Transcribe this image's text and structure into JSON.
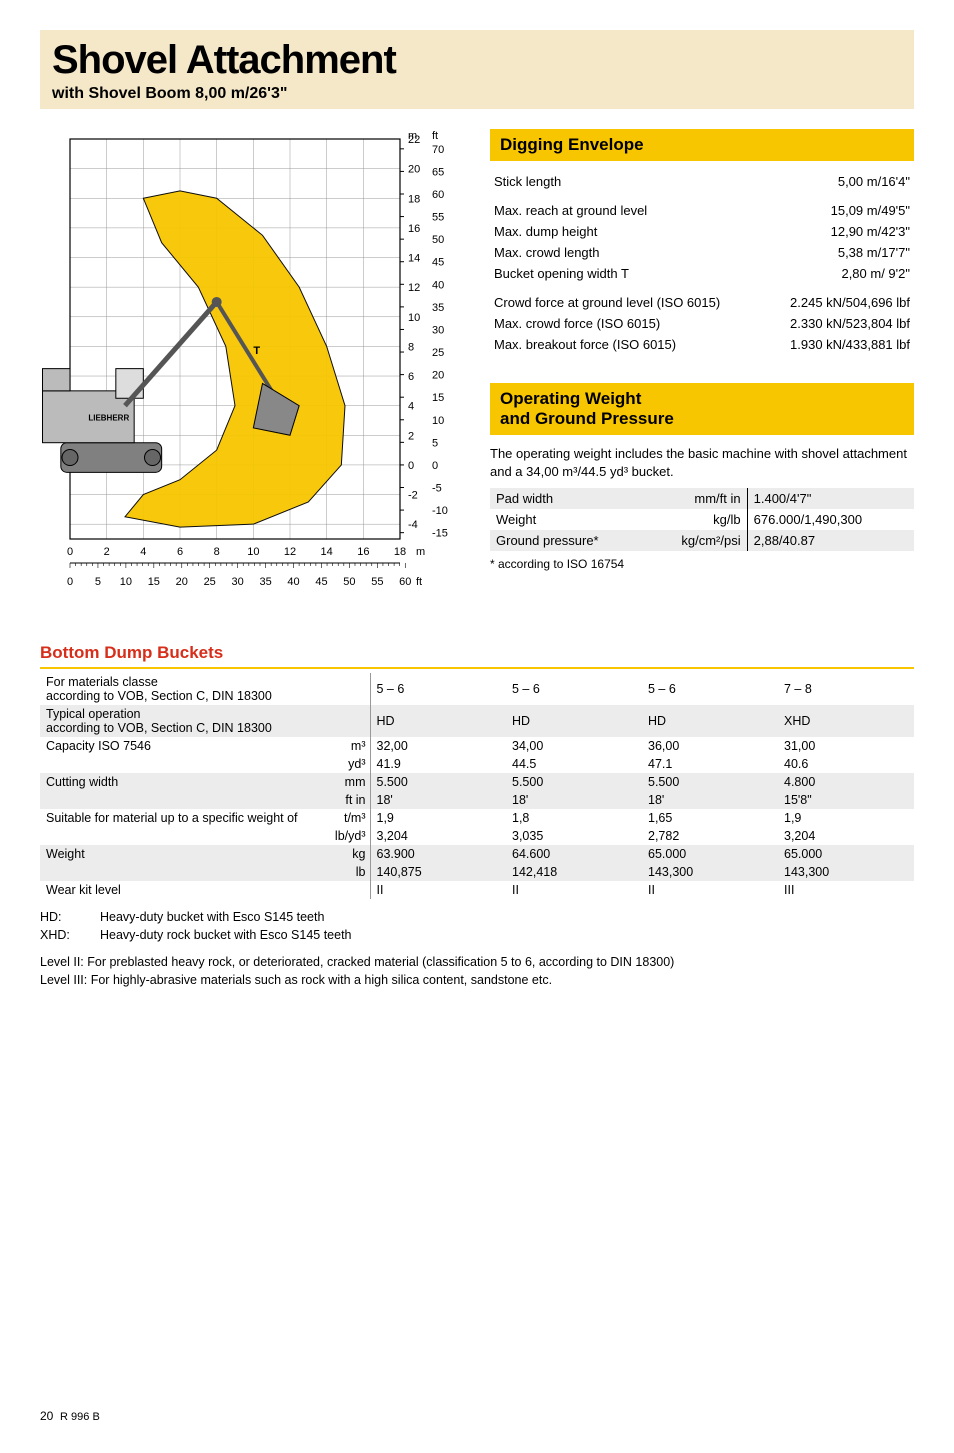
{
  "header": {
    "title": "Shovel Attachment",
    "subtitle": "with Shovel Boom 8,00 m/26'3\""
  },
  "digging": {
    "heading": "Digging Envelope",
    "rows": [
      {
        "label": "Stick length",
        "value": "5,00 m/16'4\""
      }
    ],
    "rows2": [
      {
        "label": "Max. reach at ground level",
        "value": "15,09 m/49'5\""
      },
      {
        "label": "Max. dump height",
        "value": "12,90 m/42'3\""
      },
      {
        "label": "Max. crowd length",
        "value": "5,38 m/17'7\""
      },
      {
        "label": "Bucket opening width T",
        "value": "2,80 m/  9'2\""
      }
    ],
    "rows3": [
      {
        "label": "Crowd force at ground level (ISO 6015)",
        "value": "2.245 kN/504,696 lbf"
      },
      {
        "label": "Max. crowd force (ISO 6015)",
        "value": "2.330 kN/523,804 lbf"
      },
      {
        "label": "Max. breakout force (ISO 6015)",
        "value": "1.930 kN/433,881 lbf"
      }
    ]
  },
  "opweight": {
    "heading": "Operating Weight\nand Ground Pressure",
    "desc": "The operating weight includes the basic machine with shovel attachment and a 34,00 m³/44.5 yd³ bucket.",
    "rows": [
      {
        "label": "Pad width",
        "unit": "mm/ft in",
        "value": "1.400/4'7\""
      },
      {
        "label": "Weight",
        "unit": "kg/lb",
        "value": "676.000/1,490,300"
      },
      {
        "label": "Ground pressure*",
        "unit": "kg/cm²/psi",
        "value": "2,88/40.87"
      }
    ],
    "footnote": "* according to ISO 16754"
  },
  "bdb": {
    "heading": "Bottom Dump Buckets",
    "rows": [
      {
        "shade": false,
        "label": "For materials classe\naccording to VOB, Section C, DIN 18300",
        "unit": "",
        "c": [
          "5 – 6",
          "5 – 6",
          "5 – 6",
          "7 – 8"
        ]
      },
      {
        "shade": true,
        "label": "Typical operation\naccording to VOB, Section C, DIN 18300",
        "unit": "",
        "c": [
          "HD",
          "HD",
          "HD",
          "XHD"
        ]
      },
      {
        "shade": false,
        "label": "Capacity ISO 7546",
        "unit": "m³",
        "c": [
          "32,00",
          "34,00",
          "36,00",
          "31,00"
        ]
      },
      {
        "shade": false,
        "label": "",
        "unit": "yd³",
        "c": [
          "41.9",
          "44.5",
          "47.1",
          "40.6"
        ]
      },
      {
        "shade": true,
        "label": "Cutting width",
        "unit": "mm",
        "c": [
          "5.500",
          "5.500",
          "5.500",
          "4.800"
        ]
      },
      {
        "shade": true,
        "label": "",
        "unit": "ft in",
        "c": [
          "18'",
          "18'",
          "18'",
          "15'8\""
        ]
      },
      {
        "shade": false,
        "label": "Suitable for material up to a specific weight of",
        "unit": "t/m³",
        "c": [
          "1,9",
          "1,8",
          "1,65",
          "1,9"
        ]
      },
      {
        "shade": false,
        "label": "",
        "unit": "lb/yd³",
        "c": [
          "3,204",
          "3,035",
          "2,782",
          "3,204"
        ]
      },
      {
        "shade": true,
        "label": "Weight",
        "unit": "kg",
        "c": [
          "63.900",
          "64.600",
          "65.000",
          "65.000"
        ]
      },
      {
        "shade": true,
        "label": "",
        "unit": "lb",
        "c": [
          "140,875",
          "142,418",
          "143,300",
          "143,300"
        ]
      },
      {
        "shade": false,
        "label": "Wear kit level",
        "unit": "",
        "c": [
          "II",
          "II",
          "II",
          "III"
        ]
      }
    ],
    "defs": [
      {
        "k": "HD:",
        "v": "Heavy-duty bucket with Esco S145 teeth"
      },
      {
        "k": "XHD:",
        "v": "Heavy-duty rock bucket with Esco S145 teeth"
      }
    ],
    "levels": [
      "Level II:  For preblasted heavy rock, or deteriorated, cracked material (classification 5 to 6, according to DIN 18300)",
      "Level III: For highly-abrasive materials such as rock with a high silica content, sandstone etc."
    ]
  },
  "chart": {
    "grid_color": "#999999",
    "bg": "#ffffff",
    "m_label": "m",
    "ft_label": "ft",
    "x_m_ticks": [
      0,
      2,
      4,
      6,
      8,
      10,
      12,
      14,
      16,
      18
    ],
    "x_ft_ticks": [
      0,
      5,
      10,
      15,
      20,
      25,
      30,
      35,
      40,
      45,
      50,
      55,
      60
    ],
    "y_m_ticks": [
      -4,
      -2,
      0,
      2,
      4,
      6,
      8,
      10,
      12,
      14,
      16,
      18,
      20,
      22
    ],
    "y_ft_ticks": [
      -15,
      -10,
      -5,
      0,
      5,
      10,
      15,
      20,
      25,
      30,
      35,
      40,
      45,
      50,
      55,
      60,
      65,
      70
    ],
    "x_m_range": [
      0,
      18
    ],
    "y_m_range": [
      -5,
      22
    ],
    "envelope_color": "#f7c600",
    "machine_color": "#808080"
  },
  "footer": {
    "page": "20",
    "model": "R 996 B"
  }
}
